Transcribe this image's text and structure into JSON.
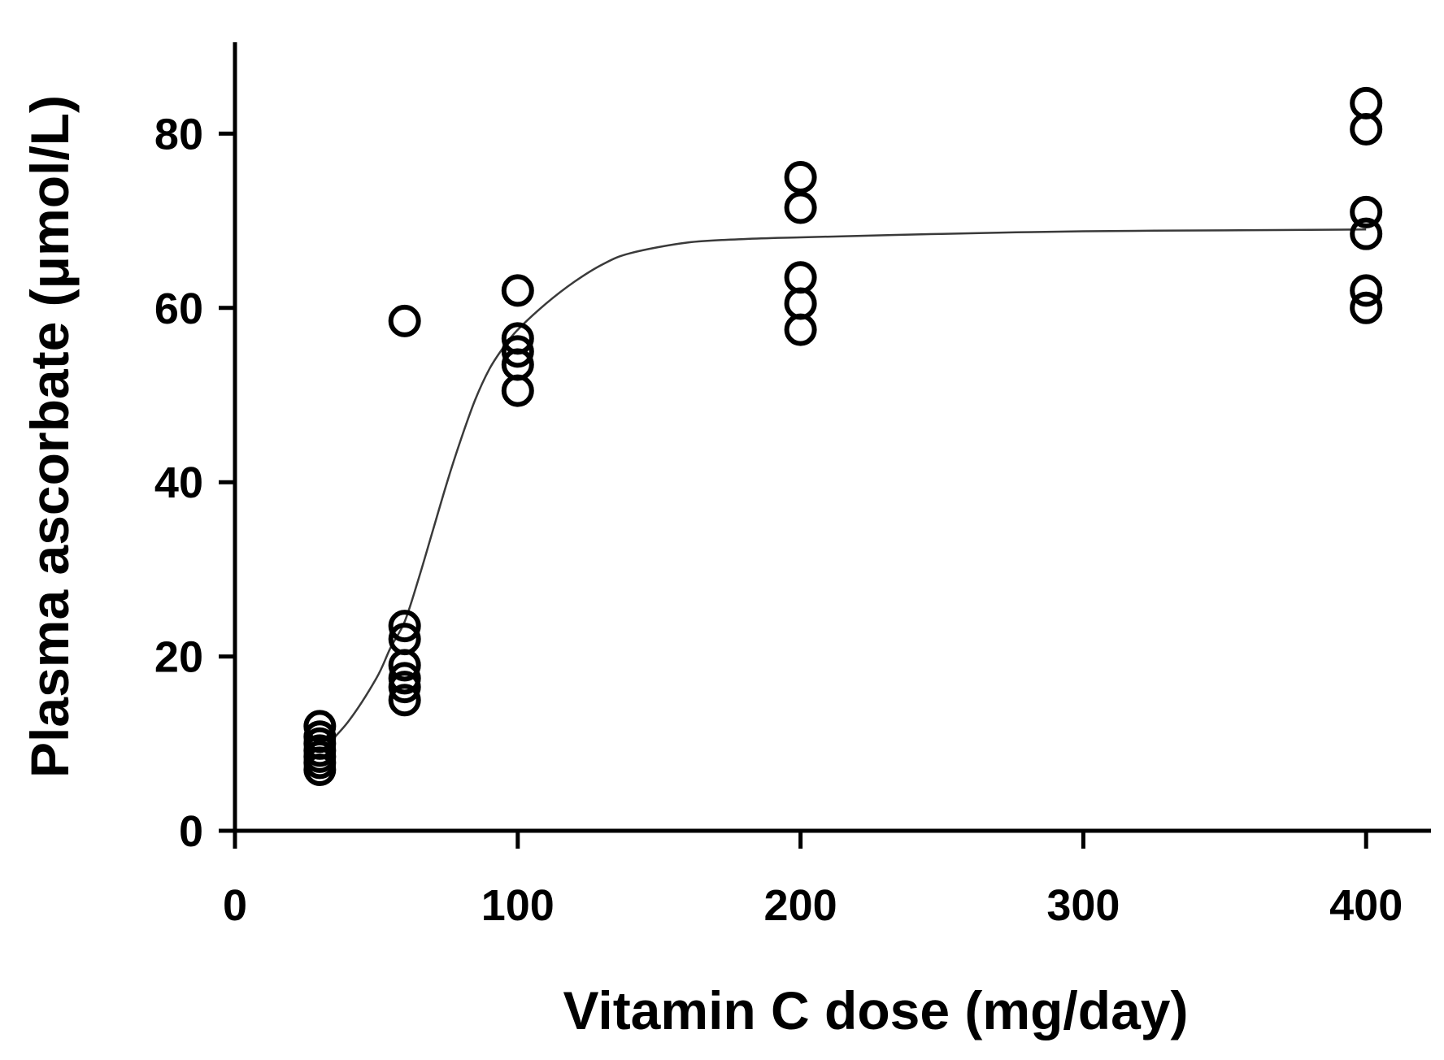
{
  "chart_data": {
    "type": "scatter",
    "title": "",
    "xlabel": "Vitamin C dose (mg/day)",
    "ylabel": "Plasma ascorbate (μmol/L)",
    "xlim": [
      0,
      420
    ],
    "ylim": [
      0,
      90
    ],
    "xticks": [
      0,
      100,
      200,
      300,
      400
    ],
    "yticks": [
      0,
      20,
      40,
      60,
      80
    ],
    "grid": false,
    "legend": "none",
    "marker": "open-circle",
    "colors": {
      "markers": "#000000",
      "fit_line": "#3a3a3a",
      "axes": "#000000"
    },
    "series": [
      {
        "values": [
          {
            "x": 30,
            "y": 12.0
          },
          {
            "x": 30,
            "y": 10.8
          },
          {
            "x": 30,
            "y": 10.0
          },
          {
            "x": 30,
            "y": 9.2
          },
          {
            "x": 30,
            "y": 8.5
          },
          {
            "x": 30,
            "y": 7.8
          },
          {
            "x": 30,
            "y": 7.0
          },
          {
            "x": 60,
            "y": 58.5
          },
          {
            "x": 60,
            "y": 23.5
          },
          {
            "x": 60,
            "y": 22.0
          },
          {
            "x": 60,
            "y": 19.0
          },
          {
            "x": 60,
            "y": 17.5
          },
          {
            "x": 60,
            "y": 16.5
          },
          {
            "x": 60,
            "y": 15.0
          },
          {
            "x": 100,
            "y": 62.0
          },
          {
            "x": 100,
            "y": 56.5
          },
          {
            "x": 100,
            "y": 55.0
          },
          {
            "x": 100,
            "y": 53.5
          },
          {
            "x": 100,
            "y": 50.5
          },
          {
            "x": 200,
            "y": 75.0
          },
          {
            "x": 200,
            "y": 71.5
          },
          {
            "x": 200,
            "y": 63.5
          },
          {
            "x": 200,
            "y": 60.5
          },
          {
            "x": 200,
            "y": 57.5
          },
          {
            "x": 400,
            "y": 83.5
          },
          {
            "x": 400,
            "y": 80.5
          },
          {
            "x": 400,
            "y": 71.0
          },
          {
            "x": 400,
            "y": 68.5
          },
          {
            "x": 400,
            "y": 62.0
          },
          {
            "x": 400,
            "y": 60.0
          }
        ]
      }
    ],
    "fit_curve": {
      "type": "sigmoid",
      "x": [
        30,
        40,
        50,
        55,
        60,
        65,
        70,
        75,
        80,
        85,
        90,
        95,
        100,
        110,
        120,
        130,
        140,
        160,
        180,
        200,
        250,
        300,
        350,
        400
      ],
      "y": [
        9.0,
        12.5,
        17.5,
        21.0,
        24.0,
        29.0,
        34.5,
        40.0,
        45.0,
        49.5,
        53.0,
        55.5,
        57.5,
        60.5,
        63.0,
        65.0,
        66.3,
        67.5,
        67.9,
        68.1,
        68.5,
        68.8,
        68.9,
        69.0
      ]
    }
  }
}
